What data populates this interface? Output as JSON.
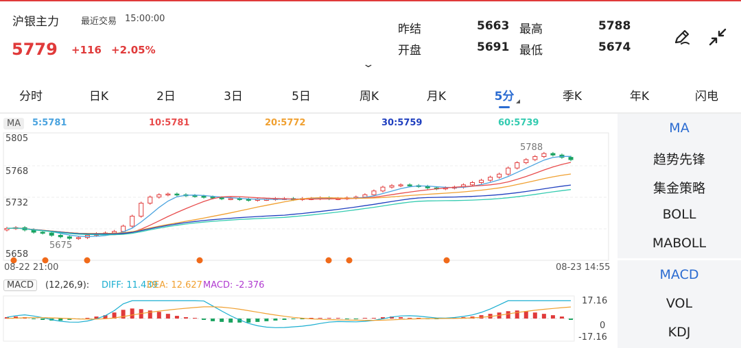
{
  "header": {
    "symbol_name": "沪银主力",
    "trade_label": "最近交易",
    "trade_time": "15:00:00",
    "price": "5779",
    "change": "+116",
    "change_pct": "+2.05%",
    "stats": {
      "prev_settle_label": "昨结",
      "prev_settle": "5663",
      "high_label": "最高",
      "high": "5788",
      "open_label": "开盘",
      "open": "5691",
      "low_label": "最低",
      "low": "5674"
    },
    "icons": {
      "draw": "pen-icon",
      "collapse": "collapse-arrows-icon",
      "expand_caret": "chevron-down-icon"
    }
  },
  "tabs": [
    "分时",
    "日K",
    "2日",
    "3日",
    "5日",
    "周K",
    "月K",
    "5分",
    "季K",
    "年K",
    "闪电"
  ],
  "active_tab": "5分",
  "ma_bar": {
    "tag": "MA",
    "items": [
      {
        "label": "5:5781",
        "color": "#4aa3df"
      },
      {
        "label": "10:5781",
        "color": "#e84c4c"
      },
      {
        "label": "20:5772",
        "color": "#f0a030"
      },
      {
        "label": "30:5759",
        "color": "#1f3fbf"
      },
      {
        "label": "60:5739",
        "color": "#33cbb0"
      }
    ]
  },
  "price_axis": [
    "5805",
    "5768",
    "5732",
    "5658"
  ],
  "annotations": {
    "max": "5788",
    "min": "5675"
  },
  "time_axis": {
    "start": "08-22 21:00",
    "end": "08-23 14:55"
  },
  "macd_bar": {
    "tag": "MACD",
    "params": "(12,26,9):",
    "diff": "DIFF: 11.439",
    "dea": "DEA: 12.627",
    "macd": "MACD: -2.376"
  },
  "macd_axis": [
    "17.16",
    "0",
    "-17.16"
  ],
  "indicators": {
    "main": [
      "MA",
      "趋势先锋",
      "集金策略",
      "BOLL",
      "MABOLL"
    ],
    "sub": [
      "MACD",
      "VOL",
      "KDJ"
    ],
    "active_main": "MA",
    "active_sub": "MACD"
  },
  "colors": {
    "up": "#e03a3a",
    "down": "#1aa260",
    "accent": "#2a6bd1",
    "ma5": "#4aa3df",
    "ma10": "#e84c4c",
    "ma20": "#f0a030",
    "ma30": "#1f3fbf",
    "ma60": "#33cbb0"
  },
  "chart_data": {
    "type": "candlestick",
    "timeframe": "5分",
    "close_series": [
      5689,
      5690,
      5687,
      5684,
      5683,
      5680,
      5678,
      5676,
      5677,
      5680,
      5682,
      5683,
      5685,
      5692,
      5705,
      5722,
      5730,
      5733,
      5734,
      5733,
      5732,
      5731,
      5730,
      5729,
      5728,
      5728,
      5727,
      5726,
      5727,
      5727,
      5728,
      5728,
      5727,
      5728,
      5728,
      5729,
      5728,
      5728,
      5729,
      5730,
      5733,
      5738,
      5743,
      5745,
      5746,
      5745,
      5744,
      5742,
      5741,
      5742,
      5743,
      5746,
      5749,
      5752,
      5756,
      5760,
      5768,
      5775,
      5779,
      5783,
      5787,
      5785,
      5782,
      5779
    ],
    "ma": {
      "5": 5781,
      "10": 5781,
      "20": 5772,
      "30": 5759,
      "60": 5739
    },
    "ylim": [
      5658,
      5805
    ],
    "macd": {
      "diff": 11.439,
      "dea": 12.627,
      "macd": -2.376,
      "ylim": [
        -17.16,
        17.16
      ],
      "histogram": [
        2,
        3,
        2,
        -1,
        -2,
        -3,
        -3,
        -2,
        -1,
        1,
        3,
        5,
        9,
        13,
        15,
        14,
        12,
        10,
        7,
        4,
        2,
        0,
        -2,
        -4,
        -5,
        -6,
        -6,
        -6,
        -5,
        -4,
        -3,
        -2,
        -1,
        -1,
        0,
        1,
        1,
        0,
        -1,
        -1,
        0,
        1,
        2,
        3,
        2,
        1,
        0,
        -1,
        -1,
        0,
        1,
        2,
        3,
        5,
        7,
        9,
        11,
        12,
        11,
        9,
        7,
        5,
        3,
        -2
      ]
    }
  }
}
